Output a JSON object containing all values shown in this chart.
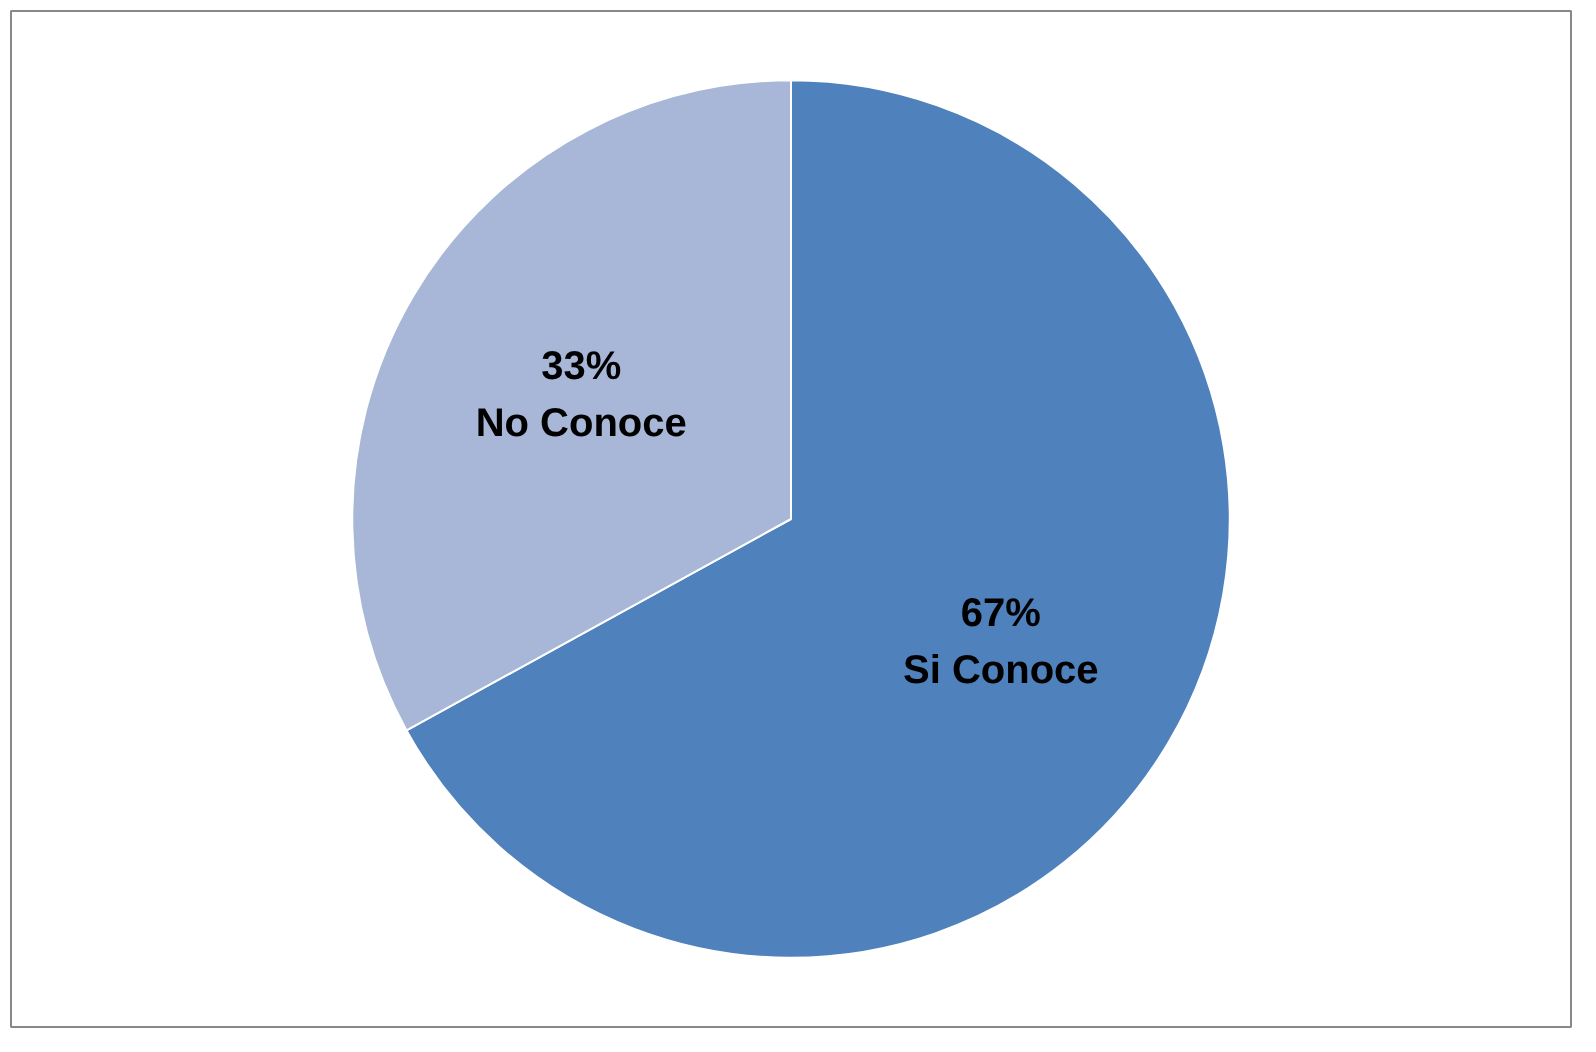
{
  "chart_data": {
    "type": "pie",
    "categories": [
      "Si Conoce",
      "No Conoce"
    ],
    "values": [
      67,
      33
    ],
    "value_labels": [
      "67%",
      "33%"
    ],
    "colors": [
      "#4f81bd",
      "#a8b7d8"
    ]
  }
}
